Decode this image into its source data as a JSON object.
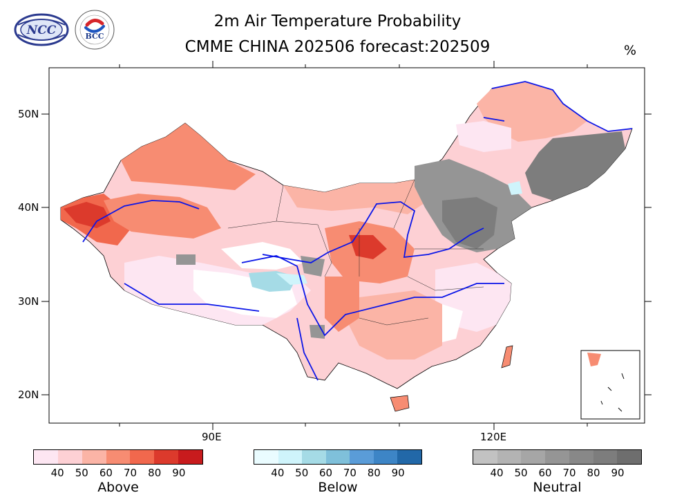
{
  "title_line1": "2m Air Temperature Probability",
  "title_line2": "CMME CHINA 202506 forecast:202509",
  "unit": "%",
  "logos": {
    "left": "NCC",
    "right": "BCC"
  },
  "axes": {
    "lat_labels": [
      "50N",
      "40N",
      "30N",
      "20N"
    ],
    "lon_labels": [
      "90E",
      "120E"
    ]
  },
  "legends": [
    {
      "name": "Above",
      "ticks": [
        "40",
        "50",
        "60",
        "70",
        "80",
        "90"
      ],
      "colors": [
        "#fde6f2",
        "#fdd0d4",
        "#fbb4a6",
        "#f78c72",
        "#f1684d",
        "#dc3a2c",
        "#c81b1d"
      ]
    },
    {
      "name": "Below",
      "ticks": [
        "40",
        "50",
        "60",
        "70",
        "80",
        "90"
      ],
      "colors": [
        "#eafcff",
        "#cff4fb",
        "#a5dbe6",
        "#7fc0da",
        "#5a9cd8",
        "#3d85c6",
        "#2268a8"
      ]
    },
    {
      "name": "Neutral",
      "ticks": [
        "40",
        "50",
        "60",
        "70",
        "80",
        "90"
      ],
      "colors": [
        "#c2c2c2",
        "#b3b3b3",
        "#a6a6a6",
        "#959595",
        "#888888",
        "#7d7d7d",
        "#6e6e6e"
      ]
    }
  ]
}
